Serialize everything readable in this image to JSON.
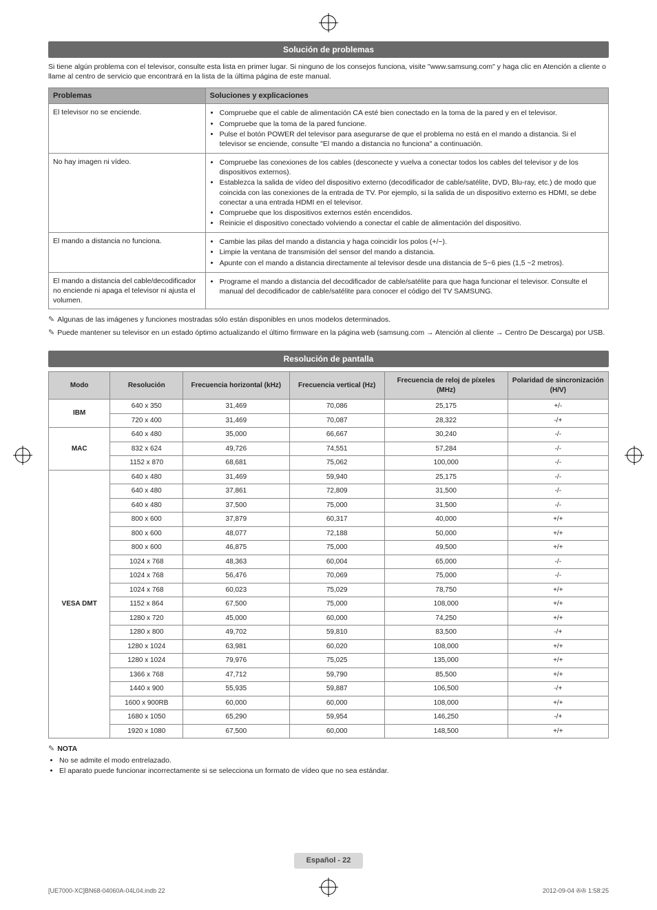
{
  "sections": {
    "troubleshoot": {
      "title": "Solución de problemas",
      "intro": "Si tiene algún problema con el televisor, consulte esta lista en primer lugar. Si ninguno de los consejos funciona, visite \"www.samsung.com\" y haga clic en Atención a cliente o llame al centro de servicio que encontrará en la lista de la última página de este manual.",
      "header_problem": "Problemas",
      "header_solution": "Soluciones y explicaciones",
      "rows": [
        {
          "problem": "El televisor no se enciende.",
          "items": [
            "Compruebe que el cable de alimentación CA esté bien conectado en la toma de la pared y en el televisor.",
            "Compruebe que la toma de la pared funcione.",
            "Pulse el botón POWER del televisor para asegurarse de que el problema no está en el mando a distancia. Si el televisor se enciende, consulte \"El mando a distancia no funciona\" a continuación."
          ]
        },
        {
          "problem": "No hay imagen ni vídeo.",
          "items": [
            "Compruebe las conexiones de los cables (desconecte y vuelva a conectar todos los cables del televisor y de los dispositivos externos).",
            "Establezca la salida de vídeo del dispositivo externo (decodificador de cable/satélite, DVD, Blu-ray, etc.) de modo que coincida con las conexiones de la entrada de TV. Por ejemplo, si la salida de un dispositivo externo es HDMI, se debe conectar a una entrada HDMI en el televisor.",
            "Compruebe que los dispositivos externos estén encendidos.",
            "Reinicie el dispositivo conectado volviendo a conectar el cable de alimentación del dispositivo."
          ]
        },
        {
          "problem": "El mando a distancia no funciona.",
          "items": [
            "Cambie las pilas del mando a distancia y haga coincidir los polos (+/−).",
            "Limpie la ventana de transmisión del sensor del mando a distancia.",
            "Apunte con el mando a distancia directamente al televisor desde una distancia de 5~6 pies (1,5 ~2 metros)."
          ]
        },
        {
          "problem": "El mando a distancia del cable/decodificador no enciende ni apaga el televisor ni ajusta el volumen.",
          "items": [
            "Programe el mando a distancia del decodificador de cable/satélite para que haga funcionar el televisor. Consulte el manual del decodificador de cable/satélite para conocer el código del TV SAMSUNG."
          ]
        }
      ],
      "notes": [
        "Algunas de las imágenes y funciones mostradas sólo están disponibles en unos modelos determinados.",
        "Puede mantener su televisor en un estado óptimo actualizando el último firmware en la página web (samsung.com → Atención al cliente → Centro De Descarga) por USB."
      ]
    },
    "resolution": {
      "title": "Resolución de pantalla",
      "headers": {
        "mode": "Modo",
        "res": "Resolución",
        "hfreq": "Frecuencia horizontal (kHz)",
        "vfreq": "Frecuencia vertical (Hz)",
        "pclk": "Frecuencia de reloj de píxeles (MHz)",
        "pol": "Polaridad de sincronización (H/V)"
      },
      "groups": [
        {
          "mode": "IBM",
          "rows": [
            [
              "640 x 350",
              "31,469",
              "70,086",
              "25,175",
              "+/-"
            ],
            [
              "720 x 400",
              "31,469",
              "70,087",
              "28,322",
              "-/+"
            ]
          ]
        },
        {
          "mode": "MAC",
          "rows": [
            [
              "640 x 480",
              "35,000",
              "66,667",
              "30,240",
              "-/-"
            ],
            [
              "832 x 624",
              "49,726",
              "74,551",
              "57,284",
              "-/-"
            ],
            [
              "1152 x 870",
              "68,681",
              "75,062",
              "100,000",
              "-/-"
            ]
          ]
        },
        {
          "mode": "VESA DMT",
          "rows": [
            [
              "640 x 480",
              "31,469",
              "59,940",
              "25,175",
              "-/-"
            ],
            [
              "640 x 480",
              "37,861",
              "72,809",
              "31,500",
              "-/-"
            ],
            [
              "640 x 480",
              "37,500",
              "75,000",
              "31,500",
              "-/-"
            ],
            [
              "800 x 600",
              "37,879",
              "60,317",
              "40,000",
              "+/+"
            ],
            [
              "800 x 600",
              "48,077",
              "72,188",
              "50,000",
              "+/+"
            ],
            [
              "800 x 600",
              "46,875",
              "75,000",
              "49,500",
              "+/+"
            ],
            [
              "1024 x 768",
              "48,363",
              "60,004",
              "65,000",
              "-/-"
            ],
            [
              "1024 x 768",
              "56,476",
              "70,069",
              "75,000",
              "-/-"
            ],
            [
              "1024 x 768",
              "60,023",
              "75,029",
              "78,750",
              "+/+"
            ],
            [
              "1152 x 864",
              "67,500",
              "75,000",
              "108,000",
              "+/+"
            ],
            [
              "1280 x 720",
              "45,000",
              "60,000",
              "74,250",
              "+/+"
            ],
            [
              "1280 x 800",
              "49,702",
              "59,810",
              "83,500",
              "-/+"
            ],
            [
              "1280 x 1024",
              "63,981",
              "60,020",
              "108,000",
              "+/+"
            ],
            [
              "1280 x 1024",
              "79,976",
              "75,025",
              "135,000",
              "+/+"
            ],
            [
              "1366 x 768",
              "47,712",
              "59,790",
              "85,500",
              "+/+"
            ],
            [
              "1440 x 900",
              "55,935",
              "59,887",
              "106,500",
              "-/+"
            ],
            [
              "1600 x 900RB",
              "60,000",
              "60,000",
              "108,000",
              "+/+"
            ],
            [
              "1680 x 1050",
              "65,290",
              "59,954",
              "146,250",
              "-/+"
            ],
            [
              "1920 x 1080",
              "67,500",
              "60,000",
              "148,500",
              "+/+"
            ]
          ]
        }
      ],
      "nota_label": "NOTA",
      "notas": [
        "No se admite el modo entrelazado.",
        "El aparato puede funcionar incorrectamente si se selecciona un formato de vídeo que no sea estándar."
      ]
    },
    "footer": {
      "page": "Español - 22",
      "left": "[UE7000-XC]BN68-04060A-04L04.indb   22",
      "right": "2012-09-04   ✇✇ 1:58:25"
    }
  }
}
